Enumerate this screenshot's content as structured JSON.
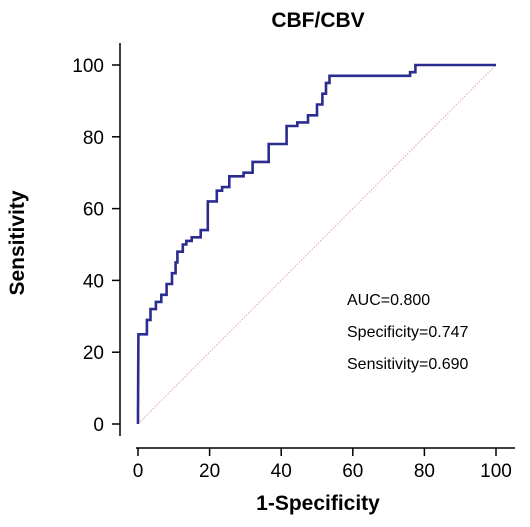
{
  "chart_data": {
    "type": "line",
    "title": "CBF/CBV",
    "xlabel": "1-Specificity",
    "ylabel": "Sensitivity",
    "xlim": [
      0,
      100
    ],
    "ylim": [
      0,
      100
    ],
    "x_ticks": [
      "0",
      "20",
      "40",
      "60",
      "80",
      "100"
    ],
    "y_ticks": [
      "0",
      "20",
      "40",
      "60",
      "80",
      "100"
    ],
    "grid": false,
    "legend": "none",
    "series": [
      {
        "color": "#2b2c8f",
        "x": [
          0,
          0,
          0.1,
          2.5,
          2.5,
          3.5,
          3.5,
          5,
          5,
          6.5,
          6.5,
          8,
          8,
          9.5,
          9.5,
          10.5,
          10.5,
          11,
          11,
          12.5,
          12.5,
          13.5,
          13.5,
          15,
          15,
          17.5,
          17.5,
          19.5,
          19.5,
          22,
          22,
          23.5,
          23.5,
          25.5,
          25.5,
          29.5,
          29.5,
          32,
          32,
          36.5,
          36.5,
          41.5,
          41.5,
          44.5,
          44.5,
          47.5,
          47.5,
          50,
          50,
          51.5,
          51.5,
          52.5,
          52.5,
          53.5,
          53.5,
          76,
          76,
          77.5,
          77.5,
          100
        ],
        "y": [
          0,
          3,
          25,
          25,
          29,
          29,
          32,
          32,
          34,
          34,
          36,
          36,
          39,
          39,
          42,
          42,
          45,
          45,
          48,
          48,
          50,
          50,
          51,
          51,
          52,
          52,
          54,
          54,
          62,
          62,
          65,
          65,
          66,
          66,
          69,
          69,
          70,
          70,
          73,
          73,
          78,
          78,
          83,
          83,
          84,
          84,
          86,
          86,
          89,
          89,
          92,
          92,
          95,
          95,
          97,
          97,
          98,
          98,
          100,
          100
        ]
      },
      {
        "color": "#e0a3a3",
        "line_style": "dotted",
        "x": [
          0,
          100
        ],
        "y": [
          0,
          100
        ]
      }
    ],
    "annotations": [
      "AUC=0.800",
      "Specificity=0.747",
      "Sensitivity=0.690"
    ]
  }
}
